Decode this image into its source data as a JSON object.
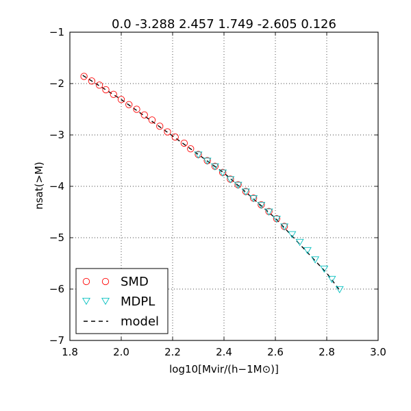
{
  "chart_data": {
    "type": "scatter",
    "title": "0.0 -3.288 2.457 1.749 -2.605 0.126",
    "xlabel": "log10[Mvir/(h−1M⊙)]",
    "ylabel": "nsat(>M)",
    "xlim": [
      1.8,
      3.0
    ],
    "ylim": [
      -7,
      -1
    ],
    "xticks": [
      "1.8",
      "2.0",
      "2.2",
      "2.4",
      "2.6",
      "2.8",
      "3.0"
    ],
    "yticks": [
      "−1",
      "−2",
      "−3",
      "−4",
      "−5",
      "−6",
      "−7"
    ],
    "grid": true,
    "legend_position": "lower-left",
    "series": [
      {
        "name": "SMD",
        "marker": "circle-open",
        "color": "#ff0000",
        "x": [
          1.855,
          1.885,
          1.915,
          1.94,
          1.97,
          2.0,
          2.03,
          2.06,
          2.09,
          2.12,
          2.15,
          2.18,
          2.21,
          2.245,
          2.27,
          2.3,
          2.335,
          2.365,
          2.395,
          2.425,
          2.455,
          2.485,
          2.515,
          2.545,
          2.575,
          2.605,
          2.635
        ],
        "y": [
          -1.86,
          -1.95,
          -2.03,
          -2.12,
          -2.21,
          -2.31,
          -2.41,
          -2.5,
          -2.61,
          -2.71,
          -2.83,
          -2.94,
          -3.04,
          -3.16,
          -3.27,
          -3.38,
          -3.5,
          -3.61,
          -3.73,
          -3.86,
          -3.97,
          -4.1,
          -4.23,
          -4.36,
          -4.49,
          -4.63,
          -4.78
        ]
      },
      {
        "name": "MDPL",
        "marker": "triangle-down-open",
        "color": "#00bfbf",
        "x": [
          2.3,
          2.335,
          2.365,
          2.395,
          2.425,
          2.455,
          2.485,
          2.515,
          2.545,
          2.575,
          2.605,
          2.635,
          2.665,
          2.695,
          2.725,
          2.755,
          2.79,
          2.82,
          2.85
        ],
        "y": [
          -3.38,
          -3.5,
          -3.61,
          -3.73,
          -3.86,
          -3.97,
          -4.1,
          -4.23,
          -4.36,
          -4.49,
          -4.63,
          -4.78,
          -4.93,
          -5.08,
          -5.24,
          -5.42,
          -5.6,
          -5.8,
          -6.0
        ]
      },
      {
        "name": "model",
        "marker": "dashed-line",
        "color": "#000000",
        "x": [
          1.85,
          2.0,
          2.2,
          2.4,
          2.6,
          2.8,
          2.85
        ],
        "y": [
          -1.84,
          -2.31,
          -3.02,
          -3.74,
          -4.62,
          -5.69,
          -6.02
        ]
      }
    ]
  }
}
